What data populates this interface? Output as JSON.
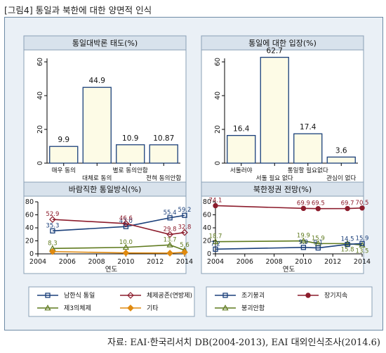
{
  "figure_title": "[그림4] 통일과 북한에 대한 양면적 인식",
  "source": "자료: EAI·한국리서치 DB(2004-2013), EAI 대외인식조사(2014.6)",
  "colors": {
    "navy": "#1a3f7a",
    "darkred": "#8c1c2c",
    "olive": "#5f7a1e",
    "orange": "#e08a10",
    "bar_fill": "#fdfbe6",
    "panel_bg": "#eaf0f6",
    "header_bg": "#d8e2ec"
  },
  "chart_data": [
    {
      "type": "bar",
      "title": "통일대박론 태도(%)",
      "categories": [
        "매우 동의",
        "대체로 동의",
        "별로 동의안함",
        "전혀 동의안함"
      ],
      "values": [
        9.9,
        44.9,
        10.9,
        10.87
      ],
      "value_labels": [
        "9.9",
        "44.9",
        "10.9",
        "10.87"
      ],
      "ylim": [
        0,
        60
      ],
      "yticks": [
        "0",
        "20",
        "40",
        "60"
      ]
    },
    {
      "type": "bar",
      "title": "통일에 대한 입장(%)",
      "categories": [
        "서둘러야",
        "서둘 필요 없다",
        "통일할 필요없다",
        "관심이 없다"
      ],
      "values": [
        16.4,
        62.7,
        17.4,
        3.6
      ],
      "value_labels": [
        "16.4",
        "62.7",
        "17.4",
        "3.6"
      ],
      "ylim": [
        0,
        60
      ],
      "yticks": [
        "0",
        "20",
        "40",
        "60"
      ]
    },
    {
      "type": "line",
      "title": "바람직한 통일방식(%)",
      "xlabel": "연도",
      "xlim": [
        2004,
        2014
      ],
      "ylim": [
        0,
        80
      ],
      "xticks": [
        "2004",
        "2006",
        "2008",
        "2010",
        "2012",
        "2014"
      ],
      "yticks": [
        "0",
        "20",
        "40",
        "60",
        "80"
      ],
      "legend": [
        "남한식 통일",
        "체제공존(연방제)",
        "제3의체제",
        "기타"
      ],
      "series": [
        {
          "name": "남한식 통일",
          "color": "navy",
          "marker": "square",
          "x": [
            2005,
            2010,
            2013,
            2014
          ],
          "y": [
            35.3,
            42.0,
            55.4,
            59.2
          ],
          "labels": [
            "35.3",
            "42.0",
            "55.4",
            "59.2"
          ]
        },
        {
          "name": "체제공존(연방제)",
          "color": "darkred",
          "marker": "diamond",
          "x": [
            2005,
            2010,
            2013,
            2014
          ],
          "y": [
            52.9,
            46.6,
            29.8,
            32.8
          ],
          "labels": [
            "52.9",
            "46.6",
            "29.8",
            "32.8"
          ]
        },
        {
          "name": "제3의체제",
          "color": "olive",
          "marker": "triangle",
          "x": [
            2005,
            2010,
            2013,
            2014
          ],
          "y": [
            8.3,
            10.0,
            13.7,
            5.6
          ],
          "labels": [
            "8.3",
            "10.0",
            "13.7",
            "5.6"
          ]
        },
        {
          "name": "기타",
          "color": "orange",
          "marker": "diamond",
          "x": [
            2005,
            2010,
            2013,
            2014
          ],
          "y": [
            3.5,
            1.4,
            1.1,
            2.4
          ],
          "labels": [
            "",
            "",
            "",
            ""
          ]
        }
      ]
    },
    {
      "type": "line",
      "title": "북한정권 전망(%)",
      "xlabel": "연도",
      "xlim": [
        2004,
        2014
      ],
      "ylim": [
        0,
        80
      ],
      "xticks": [
        "2004",
        "2006",
        "2008",
        "2010",
        "2012",
        "2014"
      ],
      "yticks": [
        "0",
        "20",
        "40",
        "60",
        "80"
      ],
      "legend": [
        "조기붕괴",
        "장기지속",
        "붕괴안함"
      ],
      "series": [
        {
          "name": "장기지속",
          "color": "darkred",
          "marker": "circle",
          "x": [
            2004,
            2010,
            2011,
            2013,
            2014
          ],
          "y": [
            74.1,
            69.9,
            69.5,
            69.7,
            70.5
          ],
          "labels": [
            "74.1",
            "69.9",
            "69.5",
            "69.7",
            "70.5"
          ]
        },
        {
          "name": "붕괴안함",
          "color": "olive",
          "marker": "triangle",
          "x": [
            2004,
            2010,
            2011,
            2013,
            2014
          ],
          "y": [
            18.7,
            19.9,
            15.9,
            15.8,
            13.5
          ],
          "labels": [
            "18.7",
            "19.9",
            "15.9",
            "15.8",
            "13.5"
          ]
        },
        {
          "name": "조기붕괴",
          "color": "navy",
          "marker": "square",
          "x": [
            2004,
            2010,
            2011,
            2013,
            2014
          ],
          "y": [
            7.2,
            9.9,
            9.1,
            14.5,
            15.9
          ],
          "labels": [
            "7.2",
            "9.9",
            "9.1",
            "14.5",
            "15.9"
          ]
        }
      ]
    }
  ]
}
